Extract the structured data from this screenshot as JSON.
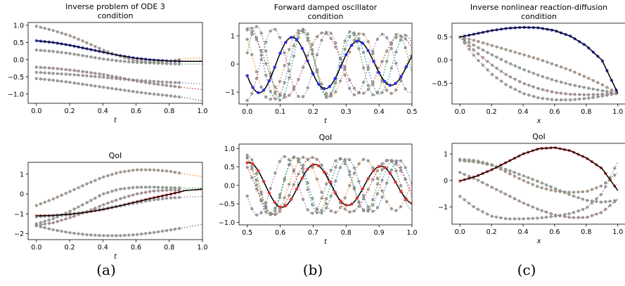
{
  "captions": [
    "(a)",
    "(b)",
    "(c)"
  ],
  "colors": {
    "truth": "#000000",
    "condition_samples": "#2d2dea",
    "qoi_samples": "#e83030",
    "other_samples": "#8c8c8c",
    "dotted_palette": [
      "#1f77b4",
      "#ff7f0e",
      "#2ca02c",
      "#d62728",
      "#9467bd",
      "#8c564b",
      "#e377c2",
      "#7f7f7f",
      "#bcbd22",
      "#17becf"
    ]
  },
  "chart_data": [
    {
      "type": "line",
      "title": "Inverse problem of ODE 3\ncondition",
      "xlabel": "t",
      "xlim": [
        -0.05,
        1.0
      ],
      "ylim": [
        -1.27,
        1.08
      ],
      "xticks": [
        0.0,
        0.2,
        0.4,
        0.6,
        0.8,
        1.0
      ],
      "xticklabels": [
        "0.0",
        "0.2",
        "0.4",
        "0.6",
        "0.8",
        "1.0"
      ],
      "yticks": [
        -1.0,
        -0.5,
        0.0,
        0.5,
        1.0
      ],
      "yticklabels": [
        "−1.0",
        "−0.5",
        "0.0",
        "0.5",
        "1.0"
      ],
      "marker_color": "condition_samples",
      "truth": {
        "x": [
          0.0,
          0.1,
          0.2,
          0.3,
          0.4,
          0.5,
          0.6,
          0.7,
          0.8,
          0.9,
          1.0
        ],
        "y": [
          0.55,
          0.5,
          0.42,
          0.32,
          0.22,
          0.12,
          0.04,
          -0.01,
          -0.04,
          -0.05,
          -0.05
        ]
      },
      "samples": [
        {
          "y": [
            0.55,
            0.5,
            0.42,
            0.32,
            0.22,
            0.12,
            0.04,
            -0.01,
            -0.04,
            -0.05,
            -0.05
          ]
        },
        {
          "y": [
            0.97,
            0.85,
            0.7,
            0.5,
            0.28,
            0.1,
            -0.03,
            -0.08,
            -0.05,
            0.03,
            0.05
          ]
        },
        {
          "y": [
            0.28,
            0.24,
            0.18,
            0.1,
            0.02,
            -0.04,
            -0.08,
            -0.1,
            -0.12,
            -0.13,
            -0.13
          ]
        },
        {
          "y": [
            -0.22,
            -0.25,
            -0.3,
            -0.36,
            -0.43,
            -0.52,
            -0.62,
            -0.7,
            -0.76,
            -0.82,
            -0.87
          ]
        },
        {
          "y": [
            -0.37,
            -0.4,
            -0.43,
            -0.47,
            -0.51,
            -0.56,
            -0.6,
            -0.63,
            -0.66,
            -0.68,
            -0.7
          ]
        },
        {
          "y": [
            -0.55,
            -0.6,
            -0.66,
            -0.73,
            -0.8,
            -0.87,
            -0.94,
            -1.0,
            -1.05,
            -1.11,
            -1.2
          ]
        }
      ],
      "sample_cut": 0.86
    },
    {
      "type": "line",
      "title": "Forward damped oscillator\ncondition",
      "xlabel": "t",
      "xlim": [
        -0.025,
        0.5
      ],
      "ylim": [
        -1.42,
        1.45
      ],
      "xticks": [
        0.0,
        0.1,
        0.2,
        0.3,
        0.4,
        0.5
      ],
      "xticklabels": [
        "0.0",
        "0.1",
        "0.2",
        "0.3",
        "0.4",
        "0.5"
      ],
      "yticks": [
        -1,
        0,
        1
      ],
      "yticklabels": [
        "−1",
        "0",
        "1"
      ],
      "marker_color": "condition_samples",
      "truth": {
        "func": "osc",
        "A": 1.05,
        "w": 31.4,
        "p": 3.55,
        "d": 0.75,
        "x0": 0.0,
        "x1": 0.5
      },
      "samples": [
        {
          "func": "osc",
          "A": 1.3,
          "w": 40.0,
          "p": 1.2,
          "d": 0.5
        },
        {
          "func": "osc",
          "A": 1.3,
          "w": 34.0,
          "p": 2.4,
          "d": 0.5
        },
        {
          "func": "osc",
          "A": 1.35,
          "w": 44.0,
          "p": 0.3,
          "d": 0.5
        },
        {
          "func": "osc",
          "A": 1.25,
          "w": 27.0,
          "p": 1.6,
          "d": 0.5
        },
        {
          "func": "osc",
          "A": 1.3,
          "w": 38.0,
          "p": 4.8,
          "d": 0.5
        }
      ],
      "sample_cut": 0.48
    },
    {
      "type": "line",
      "title": "Inverse nonlinear reaction-diffusion\ncondition",
      "xlabel": "x",
      "xlim": [
        -0.05,
        1.05
      ],
      "ylim": [
        -0.95,
        0.8
      ],
      "xticks": [
        0.0,
        0.2,
        0.4,
        0.6,
        0.8,
        1.0
      ],
      "xticklabels": [
        "0.0",
        "0.2",
        "0.4",
        "0.6",
        "0.8",
        "1.0"
      ],
      "yticks": [
        -0.5,
        0.0,
        0.5
      ],
      "yticklabels": [
        "−0.5",
        "0.0",
        "0.5"
      ],
      "marker_color": "condition_samples",
      "truth": {
        "x": [
          0.0,
          0.1,
          0.2,
          0.3,
          0.4,
          0.5,
          0.6,
          0.7,
          0.8,
          0.9,
          1.0
        ],
        "y": [
          0.5,
          0.57,
          0.64,
          0.69,
          0.71,
          0.7,
          0.64,
          0.52,
          0.31,
          0.0,
          -0.72
        ]
      },
      "samples": [
        {
          "y": [
            0.5,
            0.57,
            0.64,
            0.69,
            0.71,
            0.7,
            0.64,
            0.52,
            0.31,
            0.0,
            -0.72
          ]
        },
        {
          "y": [
            0.5,
            0.42,
            0.32,
            0.22,
            0.12,
            0.02,
            -0.1,
            -0.22,
            -0.37,
            -0.53,
            -0.72
          ]
        },
        {
          "y": [
            0.5,
            0.3,
            0.12,
            -0.05,
            -0.2,
            -0.33,
            -0.44,
            -0.53,
            -0.6,
            -0.66,
            -0.72
          ]
        },
        {
          "y": [
            0.5,
            0.18,
            -0.1,
            -0.33,
            -0.5,
            -0.62,
            -0.7,
            -0.74,
            -0.75,
            -0.74,
            -0.72
          ]
        },
        {
          "y": [
            0.5,
            0.05,
            -0.3,
            -0.55,
            -0.72,
            -0.82,
            -0.86,
            -0.86,
            -0.83,
            -0.78,
            -0.72
          ]
        }
      ],
      "sample_cut": 0.99
    },
    {
      "type": "line",
      "title": "QoI",
      "xlabel": "t",
      "xlim": [
        -0.05,
        1.0
      ],
      "ylim": [
        -2.3,
        1.6
      ],
      "xticks": [
        0.0,
        0.2,
        0.4,
        0.6,
        0.8,
        1.0
      ],
      "xticklabels": [
        "0.0",
        "0.2",
        "0.4",
        "0.6",
        "0.8",
        "1.0"
      ],
      "yticks": [
        -2,
        -1,
        0,
        1
      ],
      "yticklabels": [
        "−2",
        "−1",
        "0",
        "1"
      ],
      "marker_color": "qoi_samples",
      "truth": {
        "x": [
          0.0,
          0.1,
          0.2,
          0.3,
          0.4,
          0.5,
          0.6,
          0.7,
          0.8,
          0.9,
          1.0
        ],
        "y": [
          -1.1,
          -1.08,
          -1.02,
          -0.92,
          -0.78,
          -0.6,
          -0.4,
          -0.2,
          -0.02,
          0.18,
          0.25
        ]
      },
      "samples": [
        {
          "y": [
            -1.1,
            -1.08,
            -1.02,
            -0.92,
            -0.78,
            -0.6,
            -0.4,
            -0.2,
            -0.02,
            0.18,
            0.25
          ]
        },
        {
          "y": [
            -0.58,
            -0.25,
            0.12,
            0.5,
            0.85,
            1.1,
            1.22,
            1.22,
            1.15,
            1.0,
            0.88
          ]
        },
        {
          "y": [
            -1.5,
            -1.25,
            -0.88,
            -0.45,
            0.0,
            0.25,
            0.34,
            0.35,
            0.32,
            0.3,
            0.3
          ]
        },
        {
          "y": [
            -1.58,
            -1.45,
            -1.2,
            -0.9,
            -0.55,
            -0.25,
            0.0,
            0.15,
            0.2,
            0.2,
            0.18
          ]
        },
        {
          "y": [
            -1.15,
            -1.1,
            -1.05,
            -0.9,
            -0.75,
            -0.6,
            -0.45,
            -0.3,
            -0.2,
            -0.15,
            -0.12
          ]
        },
        {
          "y": [
            -1.6,
            -1.8,
            -1.95,
            -2.05,
            -2.1,
            -2.1,
            -2.05,
            -1.95,
            -1.82,
            -1.68,
            -1.52
          ]
        }
      ],
      "sample_cut": 0.86
    },
    {
      "type": "line",
      "title": "QoI",
      "xlabel": "t",
      "xlim": [
        0.475,
        1.0
      ],
      "ylim": [
        -1.07,
        1.12
      ],
      "xticks": [
        0.5,
        0.6,
        0.7,
        0.8,
        0.9,
        1.0
      ],
      "xticklabels": [
        "0.5",
        "0.6",
        "0.7",
        "0.8",
        "0.9",
        "1.0"
      ],
      "yticks": [
        -1.0,
        -0.5,
        0.0,
        0.5,
        1.0
      ],
      "yticklabels": [
        "−1.0",
        "−0.5",
        "0.0",
        "0.5",
        "1.0"
      ],
      "marker_color": "qoi_samples",
      "truth": {
        "func": "osc",
        "A": 0.78,
        "w": 31.4,
        "p": -14.3,
        "d": 0.45,
        "x0": 0.5,
        "x1": 1.0
      },
      "samples": [
        {
          "func": "osc",
          "A": 1.0,
          "w": 40.0,
          "p": -18.0,
          "d": 0.4
        },
        {
          "func": "osc",
          "A": 1.0,
          "w": 34.0,
          "p": -15.0,
          "d": 0.4
        },
        {
          "func": "osc",
          "A": 1.0,
          "w": 44.0,
          "p": -20.5,
          "d": 0.4
        },
        {
          "func": "osc",
          "A": 1.0,
          "w": 27.0,
          "p": -11.0,
          "d": 0.4
        },
        {
          "func": "osc",
          "A": 1.0,
          "w": 38.0,
          "p": -15.5,
          "d": 0.4
        }
      ],
      "sample_cut": 0.98
    },
    {
      "type": "line",
      "title": "QoI",
      "xlabel": "x",
      "xlim": [
        -0.05,
        1.05
      ],
      "ylim": [
        -1.65,
        1.4
      ],
      "xticks": [
        0.0,
        0.2,
        0.4,
        0.6,
        0.8,
        1.0
      ],
      "xticklabels": [
        "0.0",
        "0.2",
        "0.4",
        "0.6",
        "0.8",
        "1.0"
      ],
      "yticks": [
        -1,
        0,
        1
      ],
      "yticklabels": [
        "−1",
        "0",
        "1"
      ],
      "marker_color": "qoi_samples",
      "truth": {
        "x": [
          0.0,
          0.1,
          0.2,
          0.3,
          0.4,
          0.5,
          0.6,
          0.7,
          0.8,
          0.9,
          1.0
        ],
        "y": [
          -0.02,
          0.15,
          0.4,
          0.7,
          1.0,
          1.2,
          1.24,
          1.12,
          0.85,
          0.45,
          -0.38
        ]
      },
      "samples": [
        {
          "y": [
            -0.02,
            0.15,
            0.4,
            0.7,
            1.0,
            1.2,
            1.24,
            1.12,
            0.85,
            0.45,
            -0.38
          ]
        },
        {
          "y": [
            0.8,
            0.75,
            0.6,
            0.3,
            0.0,
            -0.25,
            -0.4,
            -0.45,
            -0.42,
            -0.2,
            0.3
          ]
        },
        {
          "y": [
            0.75,
            0.7,
            0.58,
            0.4,
            0.18,
            -0.05,
            -0.3,
            -0.55,
            -0.75,
            -0.82,
            -0.75
          ]
        },
        {
          "y": [
            0.3,
            0.05,
            -0.25,
            -0.55,
            -0.85,
            -1.1,
            -1.3,
            -1.4,
            -1.4,
            -1.2,
            -0.7
          ]
        },
        {
          "y": [
            -0.6,
            -1.05,
            -1.35,
            -1.45,
            -1.45,
            -1.42,
            -1.35,
            -1.25,
            -1.05,
            -0.5,
            0.7
          ]
        }
      ],
      "sample_cut": 0.98
    }
  ]
}
